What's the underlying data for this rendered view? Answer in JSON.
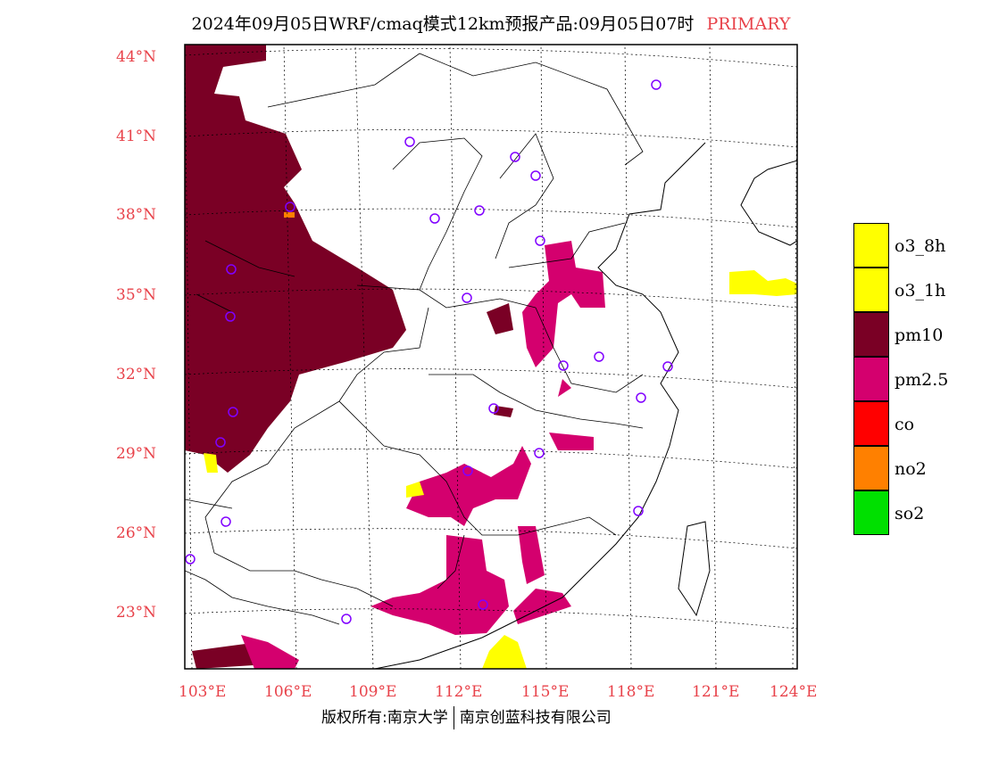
{
  "title": {
    "main": "2024年09月05日WRF/cmaq模式12km预报产品:09月05日07时",
    "tag": "PRIMARY"
  },
  "lat_labels": [
    "44°N",
    "41°N",
    "38°N",
    "35°N",
    "32°N",
    "29°N",
    "26°N",
    "23°N"
  ],
  "lon_labels": [
    "103°E",
    "106°E",
    "109°E",
    "112°E",
    "115°E",
    "118°E",
    "121°E",
    "124°E"
  ],
  "legend": [
    {
      "label": "o3_8h",
      "color": "#ffff00"
    },
    {
      "label": "o3_1h",
      "color": "#ffff00"
    },
    {
      "label": "pm10",
      "color": "#7a0025"
    },
    {
      "label": "pm2.5",
      "color": "#d4006e"
    },
    {
      "label": "co",
      "color": "#ff0000"
    },
    {
      "label": "no2",
      "color": "#ff8000"
    },
    {
      "label": "so2",
      "color": "#00e000"
    }
  ],
  "footer": {
    "left": "版权所有:南京大学",
    "right": "南京创蓝科技有限公司"
  },
  "colors": {
    "pm10": "#7a0025",
    "pm25": "#d4006e",
    "o3": "#ffff00",
    "no2": "#ff8000",
    "label_red": "#e8424a",
    "station": "#8000ff"
  }
}
